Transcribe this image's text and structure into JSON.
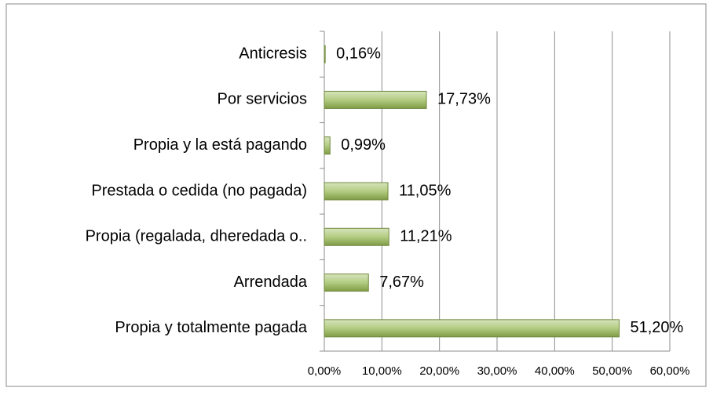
{
  "chart_data": {
    "type": "bar",
    "orientation": "horizontal",
    "categories": [
      "Anticresis",
      "Por servicios",
      "Propia y la está pagando",
      "Prestada o cedida (no pagada)",
      "Propia (regalada, dheredada o..",
      "Arrendada",
      "Propia y totalmente pagada"
    ],
    "values": [
      0.16,
      17.73,
      0.99,
      11.05,
      11.21,
      7.67,
      51.2
    ],
    "value_labels": [
      "0,16%",
      "17,73%",
      "0,99%",
      "11,05%",
      "11,21%",
      "7,67%",
      "51,20%"
    ],
    "color": "#9bbb59",
    "xlim": [
      0,
      60
    ],
    "xticks": [
      {
        "value": 0,
        "label": "0,00%"
      },
      {
        "value": 10,
        "label": "10,00%"
      },
      {
        "value": 20,
        "label": "20,00%"
      },
      {
        "value": 30,
        "label": "30,00%"
      },
      {
        "value": 40,
        "label": "40,00%"
      },
      {
        "value": 50,
        "label": "50,00%"
      },
      {
        "value": 60,
        "label": "60,00%"
      }
    ],
    "grid": true
  }
}
